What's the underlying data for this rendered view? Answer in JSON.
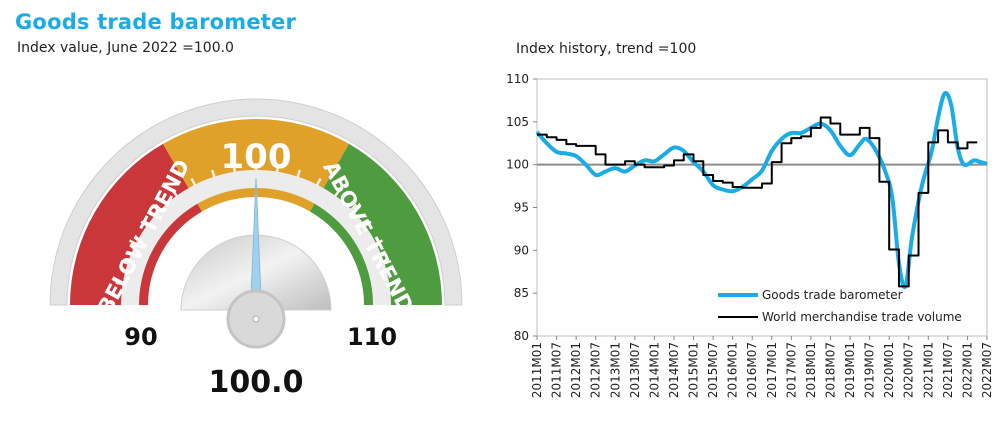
{
  "header": {
    "title": "Goods trade barometer",
    "subtitle": "Index value, June 2022 =100.0"
  },
  "chart_data": [
    {
      "type": "gauge",
      "min": 90,
      "center": 100,
      "max": 110,
      "value": 100.0,
      "value_label": "100.0",
      "min_label": "90",
      "center_label": "100",
      "max_label": "110",
      "zones": [
        {
          "label": "BELOW TREND",
          "color": "#c9373a"
        },
        {
          "label": "",
          "color": "#e0a12b"
        },
        {
          "label": "ABOVE TREND",
          "color": "#4f9b3f"
        }
      ],
      "needle_color": "#9fd0ee"
    },
    {
      "type": "line",
      "title": "Index history, trend =100",
      "ylim": [
        80,
        110
      ],
      "yticks": [
        80,
        85,
        90,
        95,
        100,
        105,
        110
      ],
      "reference_line": 100,
      "xticks": [
        "2011M01",
        "2011M07",
        "2012M01",
        "2012M07",
        "2013M01",
        "2013M07",
        "2014M01",
        "2014M07",
        "2015M01",
        "2015M07",
        "2016M01",
        "2016M07",
        "2017M01",
        "2017M07",
        "2018M01",
        "2018M07",
        "2019M01",
        "2019M07",
        "2020M01",
        "2020M07",
        "2021M01",
        "2021M07",
        "2022M01",
        "2022M07"
      ],
      "legend_position": "bottom-right",
      "series": [
        {
          "name": "Goods trade barometer",
          "color": "#1aace6",
          "style": "smooth",
          "points": [
            [
              "2011M01",
              103.8
            ],
            [
              "2011M04",
              102.5
            ],
            [
              "2011M07",
              101.5
            ],
            [
              "2011M10",
              101.3
            ],
            [
              "2012M01",
              101.0
            ],
            [
              "2012M04",
              100.0
            ],
            [
              "2012M07",
              98.8
            ],
            [
              "2012M10",
              99.2
            ],
            [
              "2013M01",
              99.6
            ],
            [
              "2013M04",
              99.2
            ],
            [
              "2013M07",
              99.9
            ],
            [
              "2013M10",
              100.5
            ],
            [
              "2014M01",
              100.4
            ],
            [
              "2014M04",
              101.2
            ],
            [
              "2014M07",
              102.0
            ],
            [
              "2014M10",
              101.6
            ],
            [
              "2015M01",
              100.3
            ],
            [
              "2015M04",
              99.2
            ],
            [
              "2015M07",
              97.6
            ],
            [
              "2015M10",
              97.1
            ],
            [
              "2016M01",
              96.9
            ],
            [
              "2016M04",
              97.4
            ],
            [
              "2016M07",
              98.3
            ],
            [
              "2016M10",
              99.3
            ],
            [
              "2017M01",
              101.6
            ],
            [
              "2017M04",
              103.0
            ],
            [
              "2017M07",
              103.7
            ],
            [
              "2017M10",
              103.7
            ],
            [
              "2018M01",
              104.3
            ],
            [
              "2018M04",
              104.8
            ],
            [
              "2018M07",
              104.0
            ],
            [
              "2018M10",
              102.2
            ],
            [
              "2019M01",
              101.1
            ],
            [
              "2019M04",
              102.4
            ],
            [
              "2019M06",
              103.0
            ],
            [
              "2019M09",
              101.6
            ],
            [
              "2019M12",
              99.0
            ],
            [
              "2020M02",
              96.0
            ],
            [
              "2020M04",
              88.5
            ],
            [
              "2020M06",
              85.8
            ],
            [
              "2020M08",
              91.5
            ],
            [
              "2020M11",
              97.5
            ],
            [
              "2021M02",
              101.5
            ],
            [
              "2021M04",
              105.5
            ],
            [
              "2021M06",
              108.3
            ],
            [
              "2021M08",
              107.0
            ],
            [
              "2021M10",
              102.0
            ],
            [
              "2021M12",
              100.0
            ],
            [
              "2022M03",
              100.5
            ],
            [
              "2022M05",
              100.3
            ],
            [
              "2022M07",
              100.1
            ]
          ]
        },
        {
          "name": "World merchandise trade volume",
          "color": "#000000",
          "style": "step",
          "points": [
            [
              "2011M01",
              103.5
            ],
            [
              "2011M04",
              103.2
            ],
            [
              "2011M07",
              102.9
            ],
            [
              "2011M10",
              102.4
            ],
            [
              "2012M01",
              102.2
            ],
            [
              "2012M04",
              102.2
            ],
            [
              "2012M07",
              101.2
            ],
            [
              "2012M10",
              100.0
            ],
            [
              "2013M01",
              100.0
            ],
            [
              "2013M04",
              100.4
            ],
            [
              "2013M07",
              100.0
            ],
            [
              "2013M10",
              99.7
            ],
            [
              "2014M01",
              99.7
            ],
            [
              "2014M04",
              99.9
            ],
            [
              "2014M07",
              100.5
            ],
            [
              "2014M10",
              101.2
            ],
            [
              "2015M01",
              100.4
            ],
            [
              "2015M04",
              98.8
            ],
            [
              "2015M07",
              98.1
            ],
            [
              "2015M10",
              97.9
            ],
            [
              "2016M01",
              97.4
            ],
            [
              "2016M04",
              97.3
            ],
            [
              "2016M07",
              97.3
            ],
            [
              "2016M10",
              97.8
            ],
            [
              "2017M01",
              100.3
            ],
            [
              "2017M04",
              102.5
            ],
            [
              "2017M07",
              103.1
            ],
            [
              "2017M10",
              103.3
            ],
            [
              "2018M01",
              104.3
            ],
            [
              "2018M04",
              105.5
            ],
            [
              "2018M07",
              104.8
            ],
            [
              "2018M10",
              103.5
            ],
            [
              "2019M01",
              103.5
            ],
            [
              "2019M04",
              104.3
            ],
            [
              "2019M07",
              103.1
            ],
            [
              "2019M10",
              98.0
            ],
            [
              "2020M01",
              90.1
            ],
            [
              "2020M04",
              85.8
            ],
            [
              "2020M07",
              89.4
            ],
            [
              "2020M10",
              96.7
            ],
            [
              "2021M01",
              102.6
            ],
            [
              "2021M04",
              104.0
            ],
            [
              "2021M07",
              102.6
            ],
            [
              "2021M10",
              101.9
            ],
            [
              "2022M01",
              102.6
            ]
          ]
        }
      ]
    }
  ]
}
